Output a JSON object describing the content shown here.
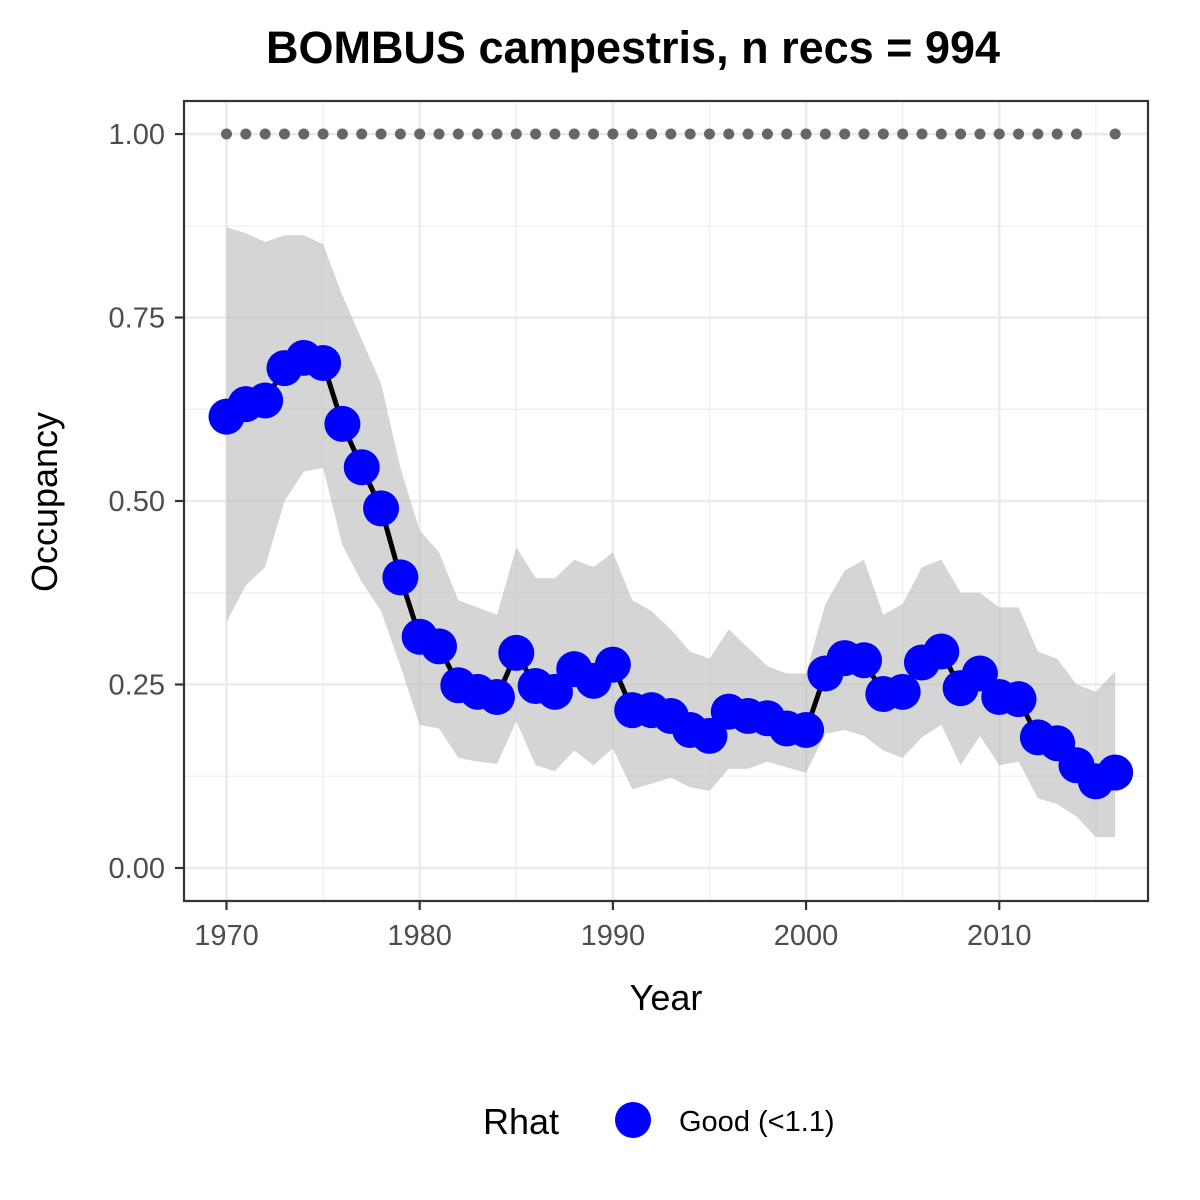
{
  "chart_data": {
    "type": "line",
    "title": "BOMBUS campestris, n recs = 994",
    "xlabel": "Year",
    "ylabel": "Occupancy",
    "xlim": [
      1967.8,
      2017.7
    ],
    "ylim": [
      -0.045,
      1.045
    ],
    "x_ticks": [
      1970,
      1980,
      1990,
      2000,
      2010
    ],
    "x_tick_labels": [
      "1970",
      "1980",
      "1990",
      "2000",
      "2010"
    ],
    "y_ticks": [
      0,
      0.25,
      0.5,
      0.75,
      1
    ],
    "y_tick_labels": [
      "0.00",
      "0.25",
      "0.50",
      "0.75",
      "1.00"
    ],
    "grid": true,
    "legend": {
      "title": "Rhat",
      "position": "bottom",
      "entries": [
        {
          "label": "Good (<1.1)",
          "color": "#0000ff"
        }
      ]
    },
    "series": [
      {
        "name": "Good (<1.1)",
        "color": "#0000ff",
        "x": [
          1970,
          1971,
          1972,
          1973,
          1974,
          1975,
          1976,
          1977,
          1978,
          1979,
          1980,
          1981,
          1982,
          1983,
          1984,
          1985,
          1986,
          1987,
          1988,
          1989,
          1990,
          1991,
          1992,
          1993,
          1994,
          1995,
          1996,
          1997,
          1998,
          1999,
          2000,
          2001,
          2002,
          2003,
          2004,
          2005,
          2006,
          2007,
          2008,
          2009,
          2010,
          2011,
          2012,
          2013,
          2014,
          2015,
          2016
        ],
        "y": [
          0.615,
          0.632,
          0.637,
          0.681,
          0.695,
          0.688,
          0.605,
          0.546,
          0.49,
          0.396,
          0.315,
          0.302,
          0.249,
          0.24,
          0.233,
          0.293,
          0.248,
          0.24,
          0.271,
          0.255,
          0.277,
          0.215,
          0.215,
          0.207,
          0.188,
          0.18,
          0.213,
          0.207,
          0.204,
          0.19,
          0.188,
          0.265,
          0.286,
          0.283,
          0.237,
          0.24,
          0.28,
          0.295,
          0.245,
          0.265,
          0.233,
          0.23,
          0.178,
          0.17,
          0.14,
          0.118,
          0.13
        ],
        "lower": [
          0.335,
          0.385,
          0.41,
          0.5,
          0.54,
          0.545,
          0.44,
          0.39,
          0.35,
          0.275,
          0.195,
          0.19,
          0.15,
          0.145,
          0.142,
          0.2,
          0.14,
          0.132,
          0.16,
          0.14,
          0.163,
          0.107,
          0.115,
          0.123,
          0.11,
          0.105,
          0.135,
          0.135,
          0.145,
          0.137,
          0.13,
          0.183,
          0.188,
          0.18,
          0.16,
          0.15,
          0.178,
          0.195,
          0.14,
          0.18,
          0.14,
          0.145,
          0.095,
          0.087,
          0.07,
          0.042,
          0.042
        ],
        "upper": [
          0.873,
          0.865,
          0.853,
          0.862,
          0.862,
          0.85,
          0.78,
          0.72,
          0.66,
          0.545,
          0.46,
          0.43,
          0.365,
          0.355,
          0.345,
          0.437,
          0.395,
          0.395,
          0.42,
          0.41,
          0.43,
          0.365,
          0.35,
          0.325,
          0.295,
          0.285,
          0.325,
          0.3,
          0.275,
          0.265,
          0.265,
          0.36,
          0.405,
          0.42,
          0.345,
          0.36,
          0.41,
          0.42,
          0.375,
          0.375,
          0.355,
          0.355,
          0.295,
          0.285,
          0.25,
          0.24,
          0.268
        ]
      }
    ],
    "record_markers": {
      "color": "#666666",
      "y": 1,
      "x": [
        1970,
        1971,
        1972,
        1973,
        1974,
        1975,
        1976,
        1977,
        1978,
        1979,
        1980,
        1981,
        1982,
        1983,
        1984,
        1985,
        1986,
        1987,
        1988,
        1989,
        1990,
        1991,
        1992,
        1993,
        1994,
        1995,
        1996,
        1997,
        1998,
        1999,
        2000,
        2001,
        2002,
        2003,
        2004,
        2005,
        2006,
        2007,
        2008,
        2009,
        2010,
        2011,
        2012,
        2013,
        2014,
        2016
      ]
    },
    "ribbon_color": "#bebebe",
    "line_color": "#000000"
  }
}
